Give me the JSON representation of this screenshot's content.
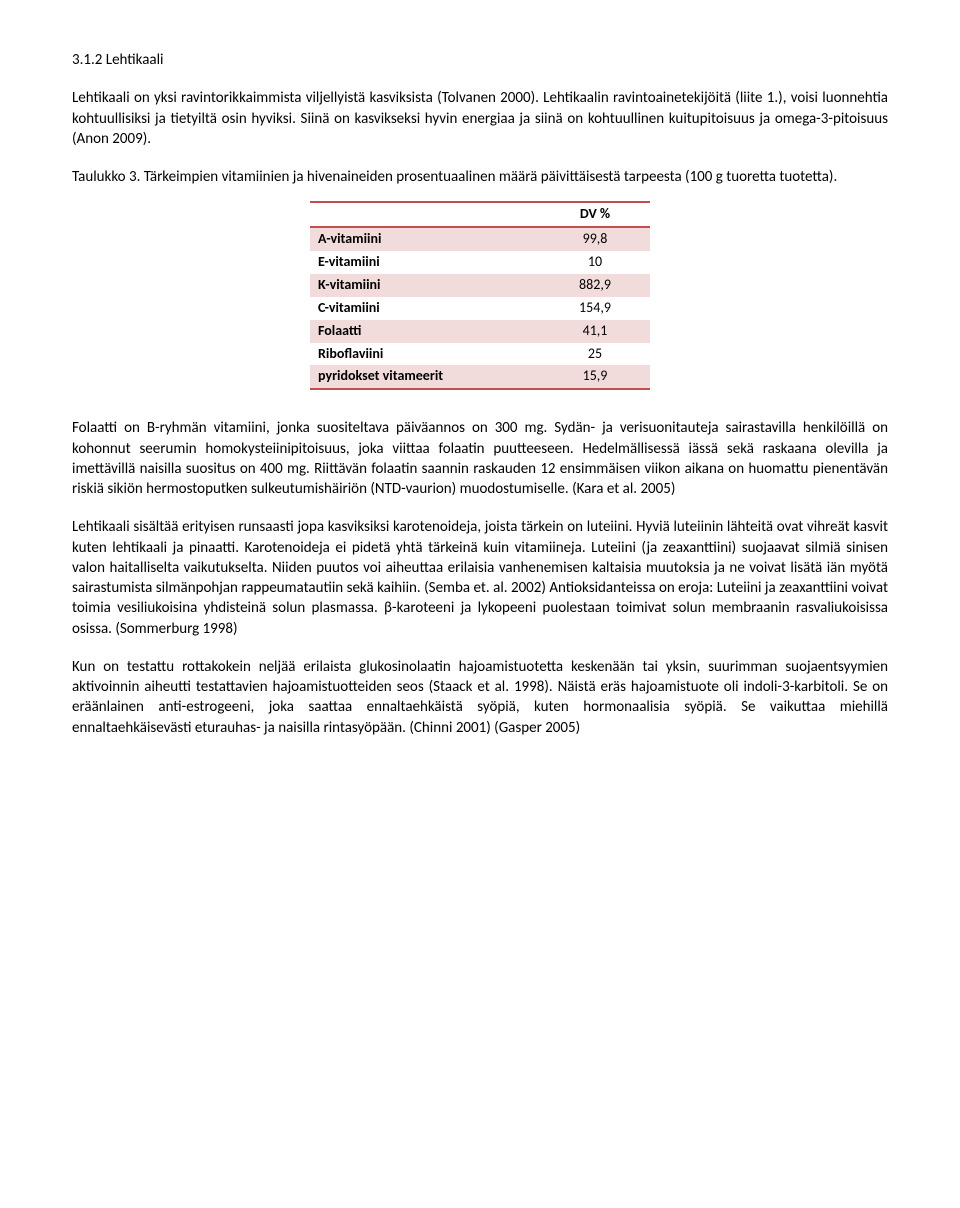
{
  "heading": "3.1.2 Lehtikaali",
  "p1": "Lehtikaali on yksi ravintorikkaimmista viljellyistä kasviksista (Tolvanen 2000). Lehtikaalin ravintoainetekijöitä (liite 1.), voisi luonnehtia kohtuullisiksi ja tietyiltä osin hyviksi. Siinä on kasvikseksi hyvin energiaa ja siinä on kohtuullinen kuitupitoisuus ja omega-3-pitoisuus (Anon 2009).",
  "table_caption": "Taulukko 3. Tärkeimpien vitamiinien ja hivenaineiden prosentuaalinen määrä päivittäisestä tarpeesta (100 g tuoretta tuotetta).",
  "table": {
    "header_value": "DV %",
    "rows": [
      {
        "label": "A-vitamiini",
        "value": "99,8",
        "stripe": true
      },
      {
        "label": "E-vitamiini",
        "value": "10",
        "stripe": false
      },
      {
        "label": "K-vitamiini",
        "value": "882,9",
        "stripe": true
      },
      {
        "label": "C-vitamiini",
        "value": "154,9",
        "stripe": false
      },
      {
        "label": "Folaatti",
        "value": "41,1",
        "stripe": true
      },
      {
        "label": "Riboflaviini",
        "value": "25",
        "stripe": false
      },
      {
        "label": "pyridokset vitameerit",
        "value": "15,9",
        "stripe": true
      }
    ],
    "stripe_color": "#f2dcdb",
    "border_color": "#c0504d"
  },
  "p2": "Folaatti on B-ryhmän vitamiini, jonka suositeltava päiväannos on 300 mg. Sydän- ja verisuonitauteja sairastavilla henkilöillä on kohonnut seerumin homokysteiinipitoisuus, joka viittaa folaatin puutteeseen. Hedelmällisessä iässä sekä raskaana olevilla ja imettävillä naisilla suositus on 400 mg. Riittävän folaatin saannin raskauden 12 ensimmäisen viikon aikana on huomattu pienentävän riskiä sikiön hermostoputken sulkeutumishäiriön (NTD-vaurion) muodostumiselle. (Kara et al. 2005)",
  "p3": "Lehtikaali sisältää erityisen runsaasti jopa kasviksiksi karotenoideja, joista tärkein on luteiini. Hyviä luteiinin lähteitä ovat vihreät kasvit kuten lehtikaali ja pinaatti. Karotenoideja ei pidetä yhtä tärkeinä kuin vitamiineja. Luteiini (ja zeaxanttiini) suojaavat silmiä sinisen valon haitalliselta vaikutukselta. Niiden puutos voi aiheuttaa erilaisia vanhenemisen kaltaisia muutoksia ja ne voivat lisätä iän myötä sairastumista silmänpohjan rappeumatautiin sekä kaihiin. (Semba et. al. 2002) Antioksidanteissa on eroja: Luteiini ja zeaxanttiini voivat toimia vesiliukoisina yhdisteinä solun plasmassa.  β-karoteeni ja lykopeeni puolestaan toimivat solun membraanin rasvaliukoisissa osissa. (Sommerburg 1998)",
  "p4": "Kun on testattu rottakokein neljää erilaista glukosinolaatin hajoamistuotetta keskenään tai yksin, suurimman suojaentsyymien aktivoinnin aiheutti testattavien hajoamistuotteiden seos (Staack et al. 1998). Näistä eräs hajoamistuote oli indoli-3-karbitoli. Se on eräänlainen anti-estrogeeni, joka saattaa ennaltaehkäistä syöpiä, kuten hormonaalisia syöpiä. Se vaikuttaa miehillä ennaltaehkäisevästi eturauhas- ja naisilla rintasyöpään. (Chinni 2001) (Gasper 2005)"
}
